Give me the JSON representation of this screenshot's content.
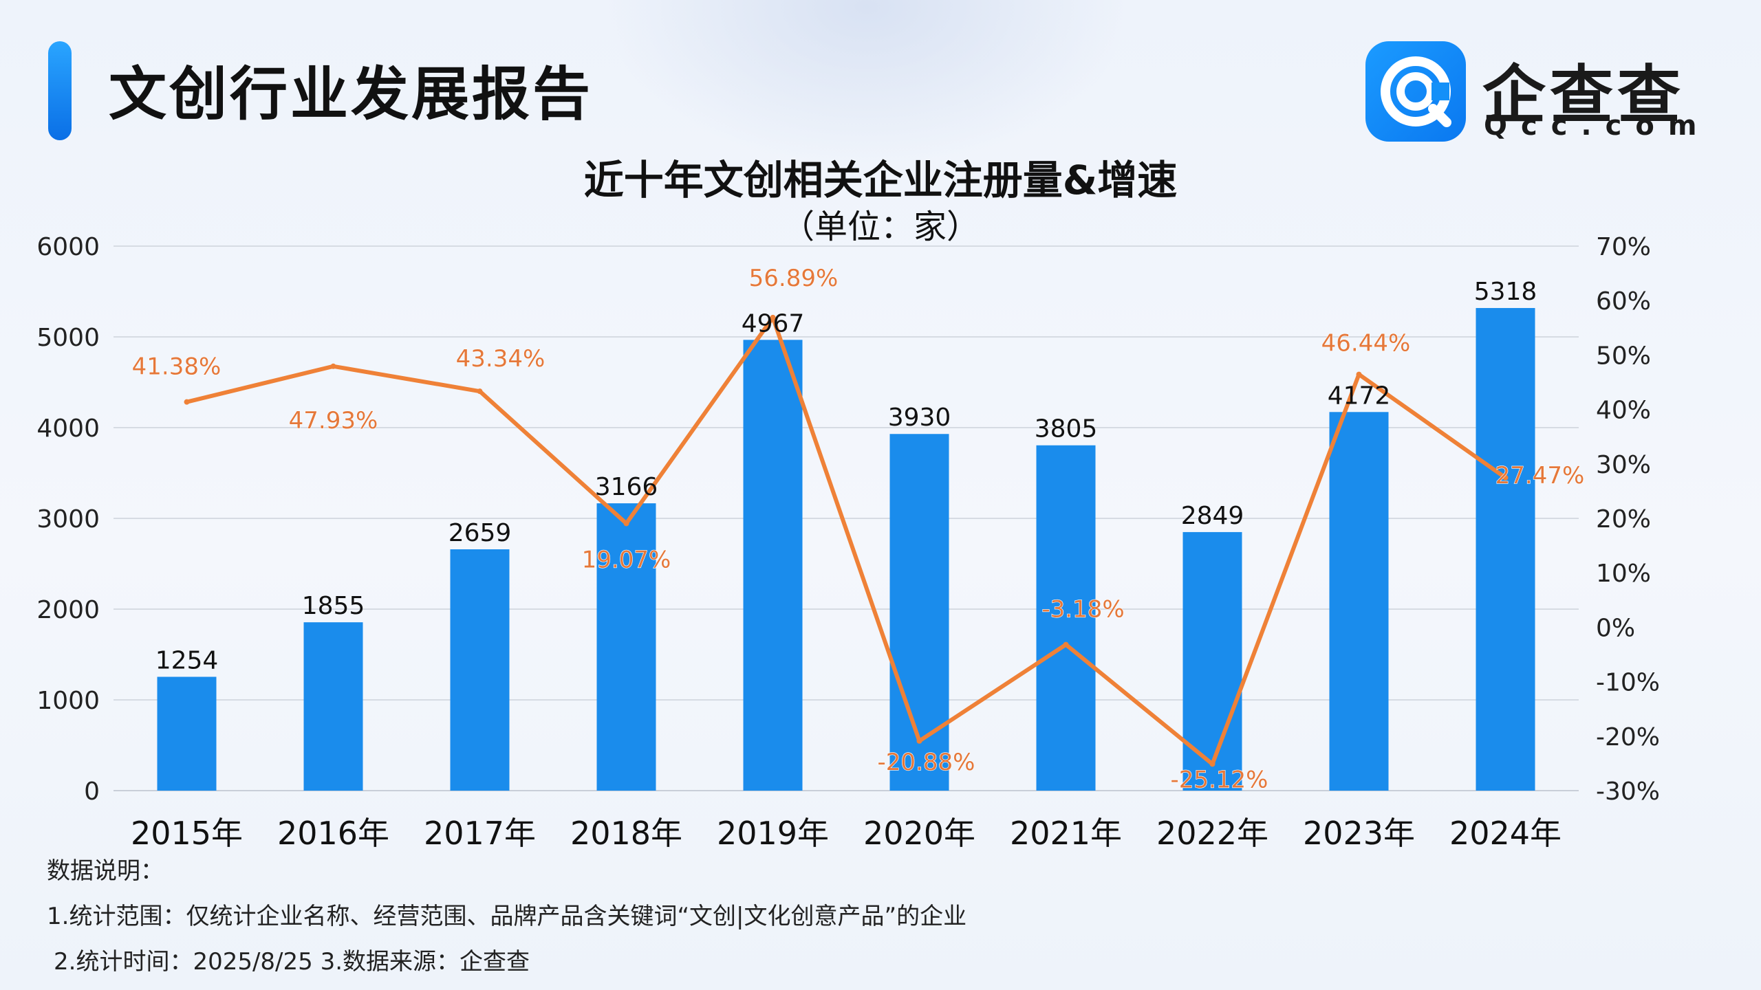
{
  "header": {
    "report_title": "文创行业发展报告",
    "logo_name": "企查查",
    "logo_domain": "Qcc.com"
  },
  "colors": {
    "accent": "#1a8cec",
    "bar": "#1a8cec",
    "line": "#ef8137",
    "rate_label": "#e5783a"
  },
  "icons": {
    "logo": "qcc-logo-icon"
  },
  "notes": {
    "heading": "数据说明：",
    "line1": "1.统计范围：仅统计企业名称、经营范围、品牌产品含关键词“文创|文化创意产品”的企业",
    "line2": "2.统计时间：2025/8/25 3.数据来源：企查查"
  },
  "chart_data": {
    "type": "bar",
    "title": "近十年文创相关企业注册量&增速",
    "subtitle": "（单位：家）",
    "categories": [
      "2015年",
      "2016年",
      "2017年",
      "2018年",
      "2019年",
      "2020年",
      "2021年",
      "2022年",
      "2023年",
      "2024年"
    ],
    "series": [
      {
        "type": "bar",
        "axis": "left",
        "values": [
          1254,
          1855,
          2659,
          3166,
          4967,
          3930,
          3805,
          2849,
          4172,
          5318
        ]
      },
      {
        "type": "line",
        "axis": "right",
        "values": [
          41.38,
          47.93,
          43.34,
          19.07,
          56.89,
          -20.88,
          -3.18,
          -25.12,
          46.44,
          27.47
        ]
      }
    ],
    "value_labels": [
      "1254",
      "1855",
      "2659",
      "3166",
      "4967",
      "3930",
      "3805",
      "2849",
      "4172",
      "5318"
    ],
    "rate_labels": [
      "41.38%",
      "47.93%",
      "43.34%",
      "19.07%",
      "56.89%",
      "-20.88%",
      "-3.18%",
      "-25.12%",
      "46.44%",
      "27.47%"
    ],
    "y_left": {
      "range": [
        0,
        6000
      ],
      "ticks": [
        "0",
        "1000",
        "2000",
        "3000",
        "4000",
        "5000",
        "6000"
      ]
    },
    "y_right": {
      "range": [
        -30,
        70
      ],
      "ticks": [
        "-30%",
        "-20%",
        "-10%",
        "0%",
        "10%",
        "20%",
        "30%",
        "40%",
        "50%",
        "60%",
        "70%"
      ]
    },
    "grid": true,
    "legend": "none"
  }
}
